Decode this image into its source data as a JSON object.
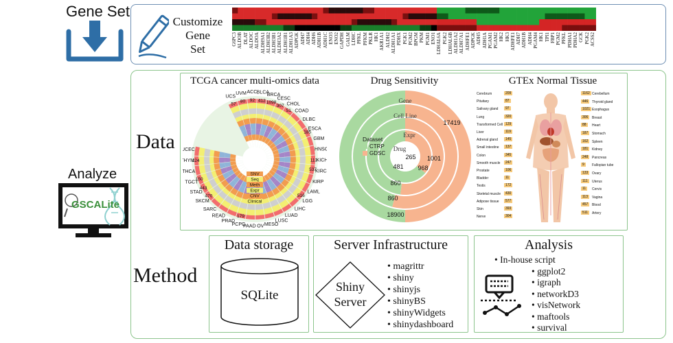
{
  "gene_set": {
    "title": "Gene Set",
    "customize_label": [
      "Customize",
      "Gene",
      "Set"
    ],
    "genes": [
      "G6PC3",
      "ALDOB",
      "DLAT",
      "ALDOC",
      "ALDOA",
      "ALDH9A1",
      "ALDH3B2",
      "ALDH3B1",
      "ALDH3A2",
      "ALDH1B1",
      "ALDH1A3",
      "ADPGK",
      "ADH7",
      "ADH4",
      "ADH6",
      "ADH1B",
      "ADH1C",
      "ENO3",
      "ENO2",
      "GAPDH",
      "GALM",
      "LDHC",
      "PFKL",
      "PFKM",
      "PKLR",
      "HK1",
      "AKR1A1",
      "ALDH2",
      "ALDH1A1",
      "PDHX",
      "PGK1",
      "PGM2",
      "BPGM",
      "PKM",
      "PGM1",
      "ENO1",
      "LDHAL6A",
      "PGK2",
      "LDHAL6B",
      "ALDH1A2",
      "ALDH7A1",
      "ADHFE1",
      "ADPGK",
      "ADH5",
      "ADH1A",
      "PGAM1",
      "PGAM2",
      "HK2",
      "HK3",
      "ADHFE1",
      "ADH7",
      "ADH1B",
      "ADH4",
      "PGAM4",
      "HK1",
      "TPI1",
      "FBP1",
      "PGM2",
      "PFKL",
      "PDHA1",
      "PDHA2",
      "GCK",
      "PGK2",
      "ACSS2"
    ]
  },
  "labels": {
    "data": "Data",
    "method": "Method",
    "analyze": "Analyze",
    "logo": "GSCALite"
  },
  "panels": {
    "tcga": {
      "title": "TCGA cancer multi-omics data",
      "cancers": [
        "UCS",
        "UVM",
        "ACC",
        "BLCA",
        "BRCA",
        "CESC",
        "CHOL",
        "COAD",
        "DLBC",
        "ESCA",
        "GBM",
        "HNSC",
        "KICH",
        "KIRC",
        "KIRP",
        "LAML",
        "LGG",
        "LIHC",
        "LUAD",
        "LUSC",
        "MESO",
        "OV",
        "PAAD",
        "PCPG",
        "PRAD",
        "READ",
        "SARC",
        "SKCM",
        "STAD",
        "TGCT",
        "THCA",
        "THYM",
        "UCEC"
      ],
      "counts": [
        "57",
        "80",
        "92",
        "412",
        "1098",
        "307",
        "51",
        "",
        "",
        "185",
        "",
        "",
        "113",
        "537",
        "",
        "",
        "516",
        "",
        "",
        "",
        "",
        "",
        "",
        "179",
        "",
        "",
        "",
        "470",
        "443",
        "150",
        "",
        "124",
        ""
      ],
      "counts_visible": [
        "57",
        "80",
        "92",
        "412",
        "1098",
        "307",
        "51",
        "185",
        "113",
        "537",
        "516",
        "179",
        "470",
        "443",
        "150",
        "124",
        "291",
        "172",
        "590",
        "185",
        "608",
        "87",
        "504",
        "585",
        "377",
        "281",
        "617",
        "48",
        "36",
        "67",
        "260",
        "119",
        "161",
        "167"
      ],
      "ring_labels": [
        "SNV",
        "Seq",
        "Meth",
        "Expr",
        "CNV",
        "Clinical"
      ]
    },
    "drug": {
      "title": "Drug Sensitivity",
      "legend_title": "Dataset",
      "legend_items": [
        {
          "name": "CTRP",
          "color": "#a9d9a0"
        },
        {
          "name": "GDSC",
          "color": "#f7b48f"
        }
      ],
      "ring_labels": [
        "Gene",
        "Cell Line",
        "Expr",
        "Drug"
      ],
      "values": {
        "gene_gdsc": "17419",
        "cell_gdsc": "1001",
        "expr_gdsc": "968",
        "drug_gdsc": "265",
        "drug_ctrp": "481",
        "expr_ctrp": "860",
        "cell_ctrp": "860",
        "gene_ctrp": "18900"
      }
    },
    "gtex": {
      "title": "GTEx Normal Tissue",
      "left_tissues": [
        {
          "name": "Cerebrum",
          "count": "209"
        },
        {
          "name": "Pituitary",
          "count": "87"
        },
        {
          "name": "Salivary gland",
          "count": "97"
        },
        {
          "name": "Lung",
          "count": "320"
        },
        {
          "name": "Transformed Cell",
          "count": "129"
        },
        {
          "name": "Liver",
          "count": "119"
        },
        {
          "name": "Adrenal gland",
          "count": "145"
        },
        {
          "name": "Small intestine",
          "count": "137"
        },
        {
          "name": "Colon",
          "count": "345"
        },
        {
          "name": "Smooth muscle",
          "count": "247"
        },
        {
          "name": "Prostate",
          "count": "106"
        },
        {
          "name": "Bladder",
          "count": "11"
        },
        {
          "name": "Testis",
          "count": "172"
        },
        {
          "name": "Skeletal muscle",
          "count": "430"
        },
        {
          "name": "Adipose tissue",
          "count": "577"
        },
        {
          "name": "Skin",
          "count": "393"
        },
        {
          "name": "Nerve",
          "count": "304"
        }
      ],
      "right_tissues": [
        {
          "name": "Cerebellum",
          "count": "1162"
        },
        {
          "name": "Thyroid gland",
          "count": "446"
        },
        {
          "name": "Esophagus",
          "count": "1021"
        },
        {
          "name": "Breast",
          "count": "306"
        },
        {
          "name": "Heart",
          "count": "88"
        },
        {
          "name": "Stomach",
          "count": "187"
        },
        {
          "name": "Spleen",
          "count": "162"
        },
        {
          "name": "Kidney",
          "count": "181"
        },
        {
          "name": "Pancreas",
          "count": "248"
        },
        {
          "name": "Fallopian tube",
          "count": "9"
        },
        {
          "name": "Ovary",
          "count": "133"
        },
        {
          "name": "Uterus",
          "count": "111"
        },
        {
          "name": "Cervix",
          "count": "11"
        },
        {
          "name": "Vagina",
          "count": "113"
        },
        {
          "name": "Blood",
          "count": "457"
        },
        {
          "name": "Artery",
          "count": "511"
        }
      ]
    }
  },
  "method": {
    "storage": {
      "title": "Data storage",
      "db": "SQLite"
    },
    "server": {
      "title": "Server Infrastructure",
      "diamond": [
        "Shiny",
        "Server"
      ],
      "packages": [
        "magrittr",
        "shiny",
        "shinyjs",
        "shinyBS",
        "shinyWidgets",
        "shinydashboard"
      ]
    },
    "analysis": {
      "title": "Analysis",
      "items": [
        "In-house script",
        "ggplot2",
        "igraph",
        "networkD3",
        "visNetwork",
        "maftools",
        "survival"
      ]
    }
  },
  "colors": {
    "frame_blue": "#6e8fb3",
    "frame_green": "#8cc48c",
    "icon_blue": "#2e6ea6",
    "ctrp_green": "#a9d9a0",
    "gdsc_orange": "#f7b48f"
  }
}
